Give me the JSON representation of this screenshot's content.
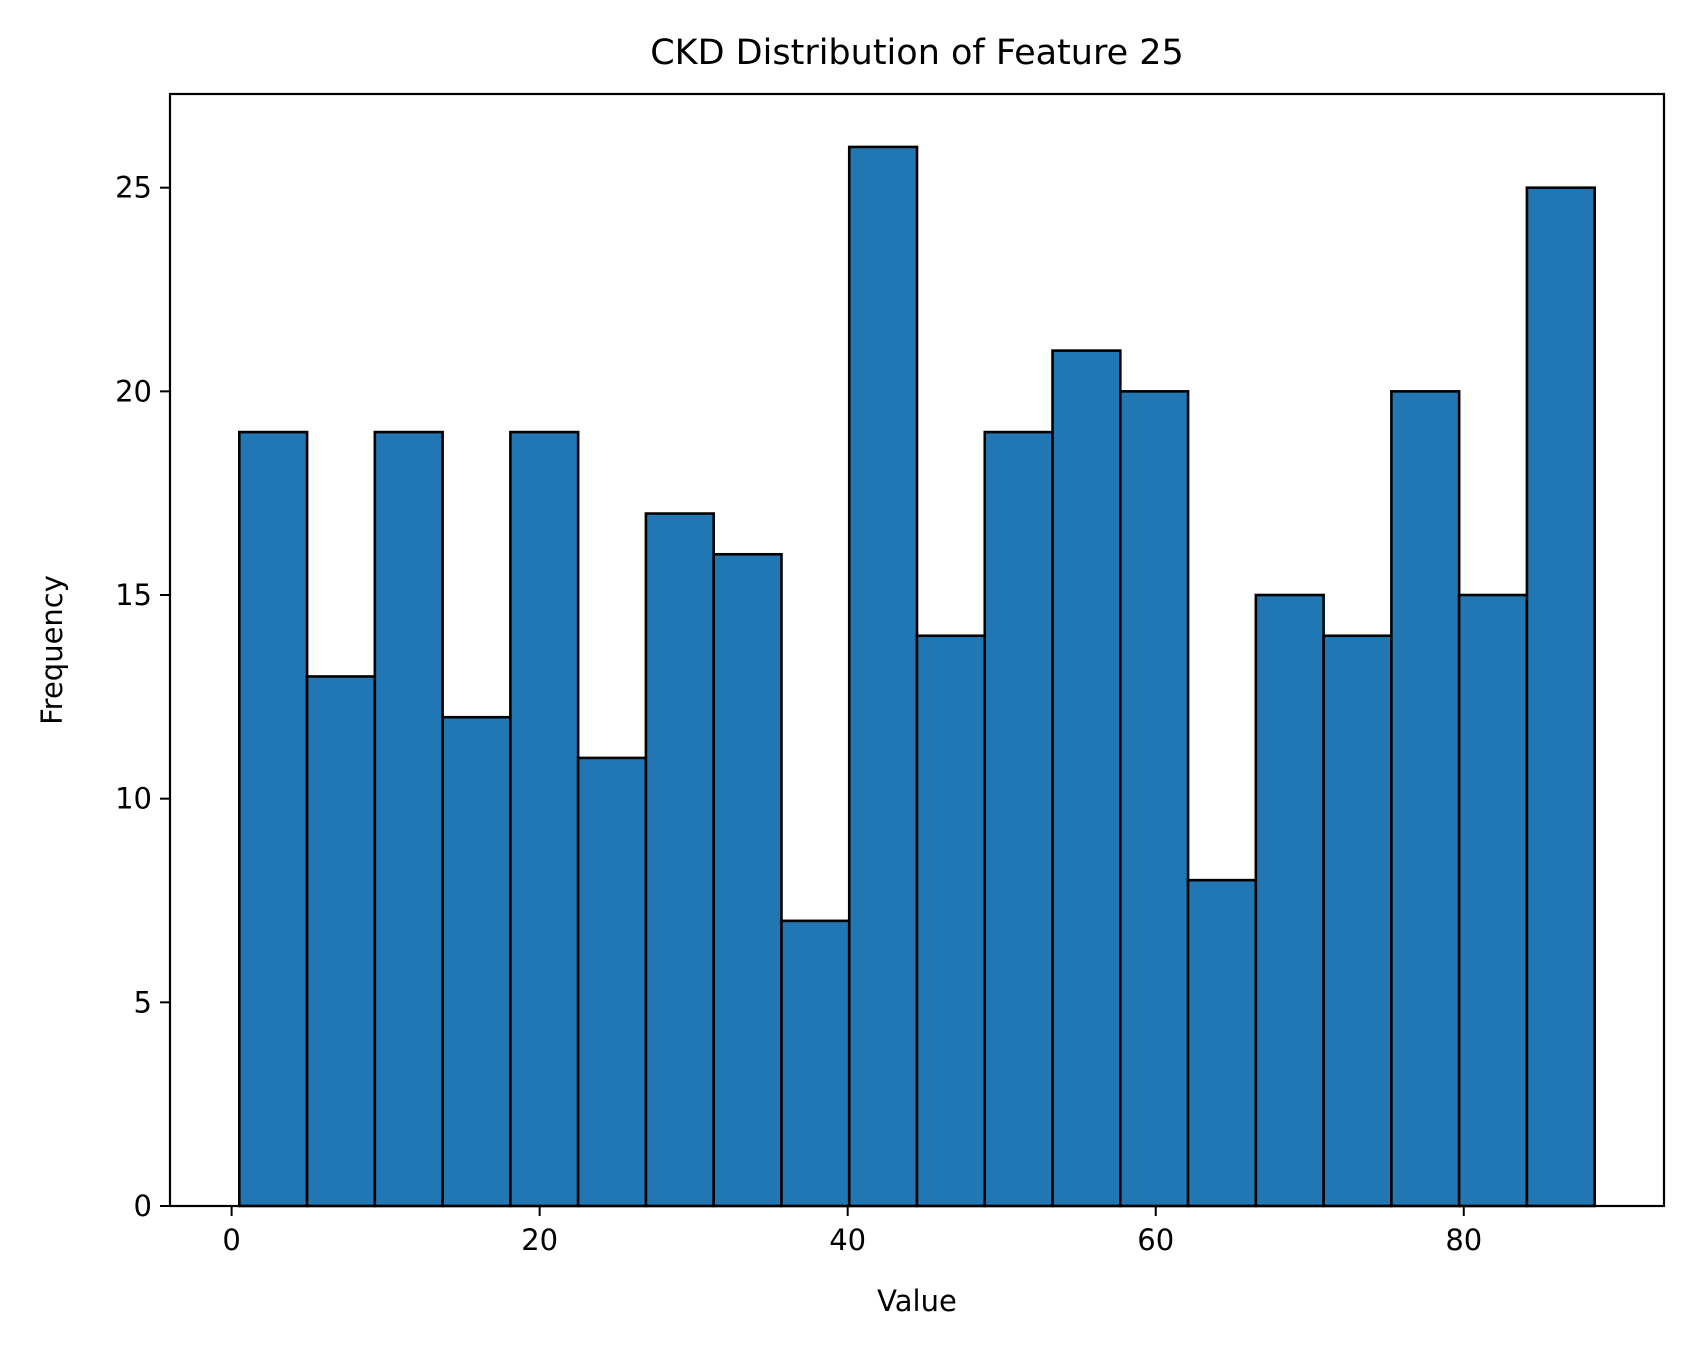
{
  "chart_data": {
    "type": "bar",
    "title": "CKD Distribution of Feature 25",
    "xlabel": "Value",
    "ylabel": "Frequency",
    "bin_edges": [
      0.5,
      4.9,
      9.3,
      13.7,
      18.1,
      22.5,
      26.9,
      31.3,
      35.7,
      40.1,
      44.5,
      48.9,
      53.3,
      57.7,
      62.1,
      66.5,
      70.9,
      75.3,
      79.7,
      84.1,
      88.5
    ],
    "values": [
      19,
      13,
      19,
      12,
      19,
      11,
      17,
      16,
      7,
      26,
      14,
      19,
      21,
      20,
      8,
      15,
      14,
      20,
      15,
      25
    ],
    "xlim": [
      -4.0,
      93.0
    ],
    "ylim": [
      0,
      27.3
    ],
    "xticks": [
      0,
      20,
      40,
      60,
      80
    ],
    "yticks": [
      0,
      5,
      10,
      15,
      20,
      25
    ],
    "xtick_labels": [
      "0",
      "20",
      "40",
      "60",
      "80"
    ],
    "ytick_labels": [
      "0",
      "5",
      "10",
      "15",
      "20",
      "25"
    ],
    "grid": false,
    "legend": false,
    "colors": {
      "bar_fill": "#2077b4",
      "bar_edge": "#000000",
      "axes": "#000000",
      "background": "#ffffff"
    }
  }
}
